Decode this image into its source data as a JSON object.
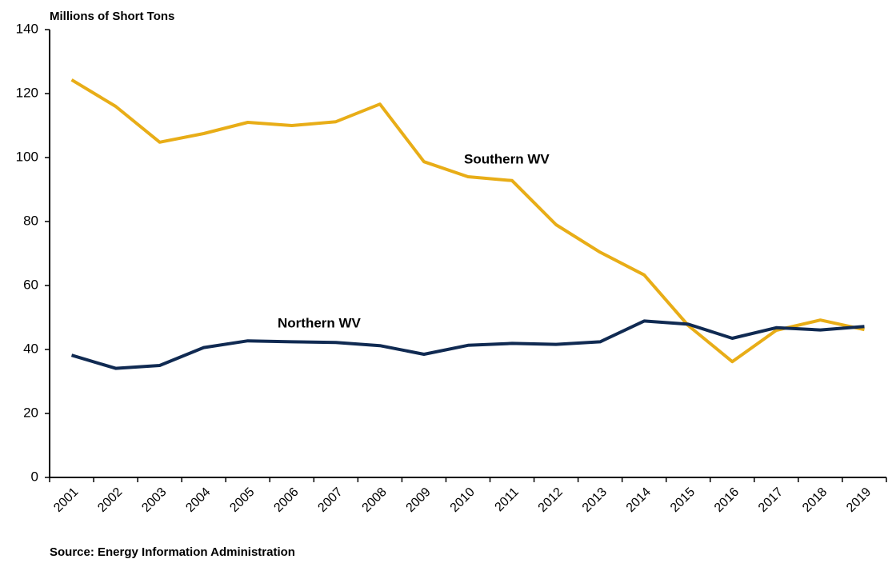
{
  "chart_data": {
    "type": "line",
    "y_label": "Millions of Short Tons",
    "source": "Source: Energy Information Administration",
    "categories": [
      "2001",
      "2002",
      "2003",
      "2004",
      "2005",
      "2006",
      "2007",
      "2008",
      "2009",
      "2010",
      "2011",
      "2012",
      "2013",
      "2014",
      "2015",
      "2016",
      "2017",
      "2018",
      "2019"
    ],
    "series": [
      {
        "name": "Southern WV",
        "color": "#e8ad17",
        "values": [
          124.3,
          116,
          104.8,
          107.5,
          111,
          110,
          111.2,
          116.7,
          98.7,
          94,
          92.8,
          79,
          70.4,
          63.3,
          47.5,
          36.2,
          46,
          49.2,
          46.2
        ]
      },
      {
        "name": "Northern WV",
        "color": "#102a52",
        "values": [
          38.2,
          34.1,
          35,
          40.6,
          42.7,
          42.4,
          42.2,
          41.2,
          38.5,
          41.3,
          41.9,
          41.6,
          42.4,
          48.9,
          47.9,
          43.5,
          46.8,
          46.1,
          47.2
        ]
      }
    ],
    "ylim": [
      0,
      140
    ],
    "yticks": [
      0,
      20,
      40,
      60,
      80,
      100,
      120,
      140
    ],
    "grid": false
  }
}
